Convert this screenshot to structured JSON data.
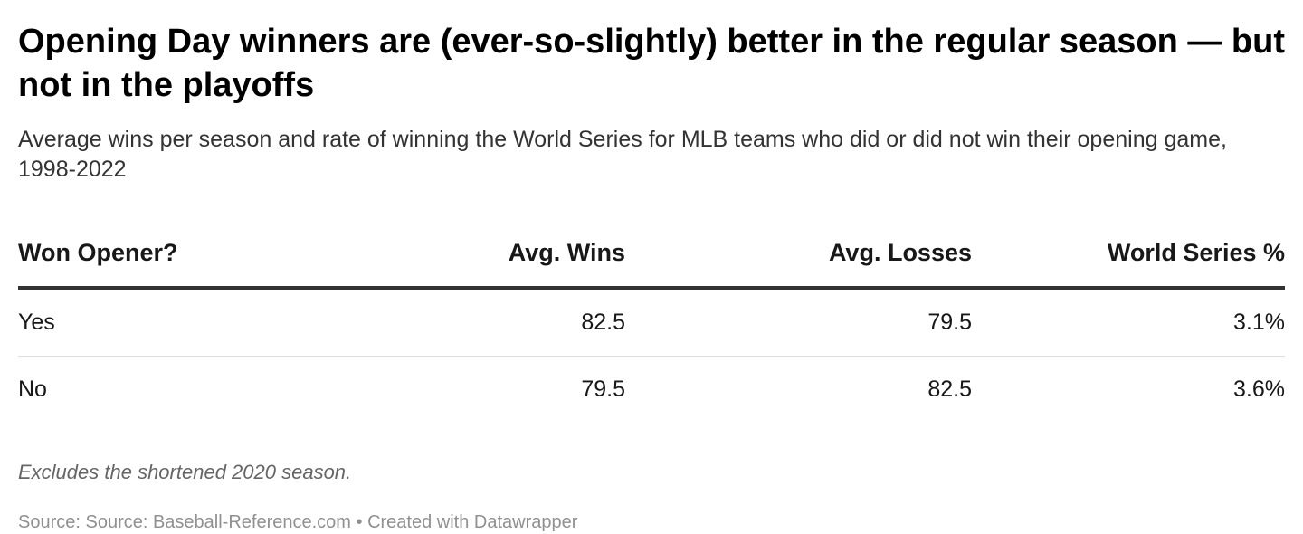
{
  "title": "Opening Day winners are (ever-so-slightly) better in the regular season — but not in the playoffs",
  "subtitle": "Average wins per season and rate of winning the World Series for MLB teams who did or did not win their opening game, 1998-2022",
  "chart_data": {
    "type": "table",
    "columns": [
      "Won Opener?",
      "Avg. Wins",
      "Avg. Losses",
      "World Series %"
    ],
    "rows": [
      [
        "Yes",
        "82.5",
        "79.5",
        "3.1%"
      ],
      [
        "No",
        "79.5",
        "82.5",
        "3.6%"
      ]
    ]
  },
  "note": "Excludes the shortened 2020 season.",
  "source": "Source: Source: Baseball-Reference.com • Created with Datawrapper"
}
